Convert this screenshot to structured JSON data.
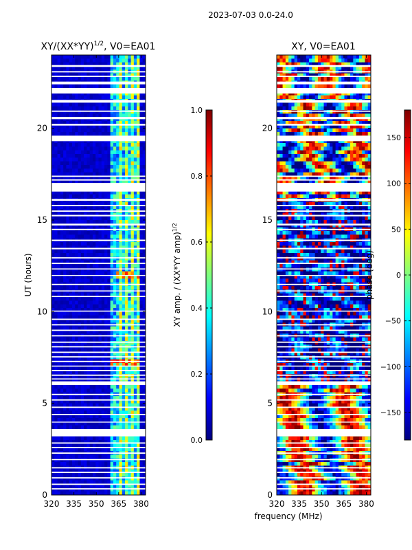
{
  "figure_title": "2023-07-03 0.0-24.0",
  "colors": {
    "jet": [
      "#00007f",
      "#0000ff",
      "#007fff",
      "#00ffff",
      "#7fff7f",
      "#ffff00",
      "#ff7f00",
      "#ff0000",
      "#7f0000"
    ],
    "background": "#ffffff",
    "text": "#000000"
  },
  "chart_data": [
    {
      "type": "heatmap",
      "title": "XY/(XX*YY)^1/2, V0=EA01",
      "title_main": "XY/(XX*YY)",
      "title_sup": "1/2",
      "title_rest": ", V0=EA01",
      "xlabel": "",
      "ylabel": "UT (hours)",
      "xlim": [
        320,
        383
      ],
      "ylim": [
        0,
        24
      ],
      "xticks": [
        "320",
        "335",
        "350",
        "365",
        "380"
      ],
      "yticks": [
        "0",
        "5",
        "10",
        "15",
        "20"
      ],
      "band_start_mhz": 360,
      "band_end_mhz": 380,
      "colorbar": {
        "label": "XY amp. / (XX*YY amp)^1/2",
        "label_main": "XY amp. / (XX*YY amp)",
        "label_sup": "1/2",
        "range": [
          0.0,
          1.0
        ],
        "ticks": [
          "0.0",
          "0.2",
          "0.4",
          "0.6",
          "0.8",
          "1.0"
        ]
      }
    },
    {
      "type": "heatmap",
      "title": "XY, V0=EA01",
      "xlabel": "frequency (MHz)",
      "ylabel": "",
      "xlim": [
        320,
        383
      ],
      "ylim": [
        0,
        24
      ],
      "xticks": [
        "320",
        "335",
        "350",
        "365",
        "380"
      ],
      "yticks": [
        "0",
        "5",
        "10",
        "15",
        "20"
      ],
      "colorbar": {
        "label": "phase (deg)",
        "range": [
          -180,
          180
        ],
        "ticks": [
          "−150",
          "−100",
          "−50",
          "0",
          "50",
          "100",
          "150"
        ]
      }
    }
  ],
  "flagged_gaps_hours": [
    [
      23.35,
      23.45
    ],
    [
      23.05,
      23.12
    ],
    [
      22.8,
      22.87
    ],
    [
      22.4,
      22.55
    ],
    [
      21.9,
      22.2
    ],
    [
      21.4,
      21.55
    ],
    [
      20.9,
      20.97
    ],
    [
      20.5,
      20.62
    ],
    [
      20.15,
      20.25
    ],
    [
      19.3,
      19.6
    ],
    [
      17.35,
      17.42
    ],
    [
      17.15,
      17.22
    ],
    [
      16.95,
      17.02
    ],
    [
      16.55,
      16.95
    ],
    [
      16.05,
      16.15
    ],
    [
      15.75,
      15.82
    ],
    [
      15.45,
      15.52
    ],
    [
      15.2,
      15.28
    ],
    [
      14.7,
      14.8
    ],
    [
      14.45,
      14.52
    ],
    [
      13.85,
      13.93
    ],
    [
      13.4,
      13.48
    ],
    [
      12.9,
      12.97
    ],
    [
      12.6,
      12.67
    ],
    [
      12.3,
      12.36
    ],
    [
      11.95,
      12.0
    ],
    [
      11.45,
      11.52
    ],
    [
      11.1,
      11.16
    ],
    [
      10.8,
      10.86
    ],
    [
      10.0,
      10.06
    ],
    [
      9.55,
      9.62
    ],
    [
      9.25,
      9.32
    ],
    [
      8.95,
      9.02
    ],
    [
      8.65,
      8.72
    ],
    [
      8.3,
      8.37
    ],
    [
      8.05,
      8.12
    ],
    [
      7.75,
      7.82
    ],
    [
      7.5,
      7.57
    ],
    [
      7.25,
      7.32
    ],
    [
      7.0,
      7.06
    ],
    [
      6.75,
      6.82
    ],
    [
      6.5,
      6.57
    ],
    [
      6.3,
      6.36
    ],
    [
      6.0,
      6.2
    ],
    [
      5.45,
      5.52
    ],
    [
      5.15,
      5.22
    ],
    [
      4.75,
      4.82
    ],
    [
      4.35,
      4.42
    ],
    [
      3.95,
      4.0
    ],
    [
      3.2,
      3.6
    ],
    [
      2.8,
      2.87
    ],
    [
      2.55,
      2.62
    ],
    [
      2.25,
      2.32
    ],
    [
      1.9,
      1.96
    ],
    [
      1.45,
      1.52
    ],
    [
      1.2,
      1.27
    ],
    [
      0.9,
      0.97
    ],
    [
      0.55,
      0.62
    ],
    [
      0.3,
      0.37
    ]
  ]
}
